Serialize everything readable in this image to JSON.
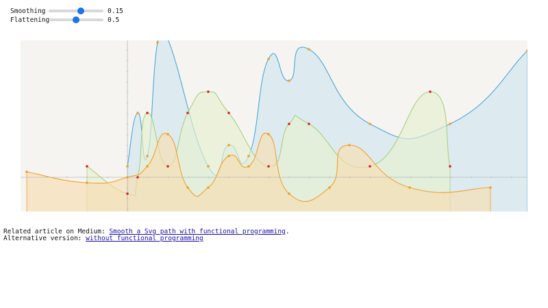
{
  "controls": {
    "smoothing": {
      "label": "Smoothing",
      "value": 0.15,
      "value_text": "0.15",
      "min": 0,
      "max": 0.25,
      "step": 0.01
    },
    "flattening": {
      "label": "Flattening",
      "value": 0.5,
      "value_text": "0.5",
      "min": 0,
      "max": 1,
      "step": 0.05
    }
  },
  "footer": {
    "medium_prefix": "Related article on Medium: ",
    "medium_link": "Smooth a Svg path with functional programming",
    "medium_suffix": ".",
    "alt_prefix": "Alternative version: ",
    "alt_link": "without functional programming"
  },
  "chart_data": {
    "type": "area",
    "grid": false,
    "background": "#f5f4f0",
    "series": [
      {
        "color": "#4da6d6",
        "fill": "#cfe6f0",
        "marker": "#f0a020",
        "points": [
          [
            186,
            243
          ],
          [
            201,
            165
          ],
          [
            215,
            228
          ],
          [
            230,
            62
          ],
          [
            245,
            57
          ],
          [
            304,
            243
          ],
          [
            334,
            212
          ],
          [
            363,
            228
          ],
          [
            392,
            86
          ],
          [
            422,
            118
          ],
          [
            451,
            72
          ],
          [
            540,
            181
          ],
          [
            657,
            181
          ],
          [
            770,
            74
          ]
        ]
      },
      {
        "color": "#a8d080",
        "fill": "#e6f0d0",
        "marker": "#d42020",
        "points": [
          [
            127,
            243
          ],
          [
            186,
            283
          ],
          [
            201,
            259
          ],
          [
            215,
            165
          ],
          [
            245,
            243
          ],
          [
            274,
            165
          ],
          [
            304,
            134
          ],
          [
            334,
            165
          ],
          [
            392,
            243
          ],
          [
            422,
            181
          ],
          [
            451,
            181
          ],
          [
            540,
            243
          ],
          [
            628,
            134
          ],
          [
            657,
            243
          ]
        ]
      },
      {
        "color": "#f0a030",
        "fill": "#f8ddb0",
        "marker": "#f0a020",
        "points": [
          [
            39,
            251
          ],
          [
            127,
            267
          ],
          [
            186,
            259
          ],
          [
            215,
            243
          ],
          [
            245,
            196
          ],
          [
            274,
            274
          ],
          [
            304,
            274
          ],
          [
            334,
            228
          ],
          [
            363,
            243
          ],
          [
            392,
            196
          ],
          [
            422,
            283
          ],
          [
            481,
            274
          ],
          [
            510,
            212
          ],
          [
            598,
            274
          ],
          [
            716,
            274
          ]
        ]
      }
    ]
  }
}
